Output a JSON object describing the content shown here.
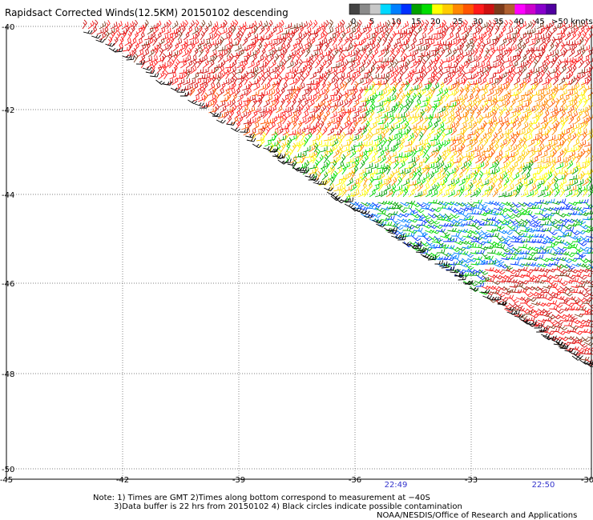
{
  "title": "Rapidsact Corrected Winds(12.5KM) 20150102 descending",
  "colorbar": {
    "colors": [
      "#444444",
      "#8a8a8a",
      "#c8c8c8",
      "#00d8ff",
      "#0080ff",
      "#0030ff",
      "#00a000",
      "#00dd00",
      "#ffff00",
      "#ffcc00",
      "#ff8800",
      "#ff5500",
      "#ff1a1a",
      "#cc1010",
      "#7a3a1a",
      "#b06030",
      "#ff00ff",
      "#cc00cc",
      "#8800cc",
      "#5000a0"
    ],
    "labels": [
      "0",
      "5",
      "10",
      "15",
      "20",
      "25",
      "30",
      "35",
      "40",
      "45",
      ">50 knots"
    ]
  },
  "axes": {
    "lat_labels": [
      "-40",
      "-42",
      "-44",
      "-46",
      "-48",
      "-50"
    ],
    "lon_labels": [
      "-45",
      "-42",
      "-39",
      "-36",
      "-33",
      "-30"
    ]
  },
  "times": [
    "22:49",
    "22:50"
  ],
  "notes": {
    "line1": "Note: 1) Times are GMT 2)Times along bottom correspond to measurement at −40S",
    "line2": "3)Data buffer is 22 hrs from 20150102 4) Black circles indicate possible contamination",
    "line3": "NOAA/NESDIS/Office of Research and Applications"
  }
}
